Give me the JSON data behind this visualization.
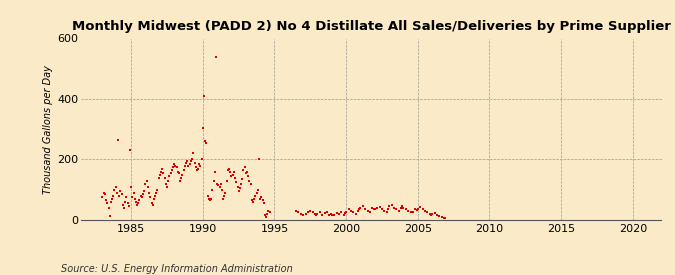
{
  "title": "Monthly Midwest (PADD 2) No 4 Distillate All Sales/Deliveries by Prime Supplier",
  "ylabel": "Thousand Gallons per Day",
  "source": "Source: U.S. Energy Information Administration",
  "background_color": "#faeac8",
  "marker_color": "#dd0000",
  "marker": "s",
  "marker_size": 4,
  "xlim": [
    1981.5,
    2022
  ],
  "ylim": [
    0,
    600
  ],
  "xticks": [
    1985,
    1990,
    1995,
    2000,
    2005,
    2010,
    2015,
    2020
  ],
  "yticks": [
    0,
    200,
    400,
    600
  ],
  "data": [
    [
      1983.0,
      75
    ],
    [
      1983.08,
      90
    ],
    [
      1983.17,
      85
    ],
    [
      1983.25,
      65
    ],
    [
      1983.33,
      55
    ],
    [
      1983.42,
      40
    ],
    [
      1983.5,
      13
    ],
    [
      1983.58,
      60
    ],
    [
      1983.67,
      70
    ],
    [
      1983.75,
      80
    ],
    [
      1983.83,
      100
    ],
    [
      1983.92,
      110
    ],
    [
      1984.0,
      90
    ],
    [
      1984.08,
      265
    ],
    [
      1984.17,
      80
    ],
    [
      1984.25,
      95
    ],
    [
      1984.33,
      85
    ],
    [
      1984.42,
      50
    ],
    [
      1984.5,
      40
    ],
    [
      1984.58,
      60
    ],
    [
      1984.67,
      75
    ],
    [
      1984.75,
      55
    ],
    [
      1984.83,
      45
    ],
    [
      1984.92,
      230
    ],
    [
      1985.0,
      110
    ],
    [
      1985.08,
      75
    ],
    [
      1985.17,
      90
    ],
    [
      1985.25,
      70
    ],
    [
      1985.33,
      60
    ],
    [
      1985.42,
      50
    ],
    [
      1985.5,
      55
    ],
    [
      1985.58,
      65
    ],
    [
      1985.67,
      80
    ],
    [
      1985.75,
      75
    ],
    [
      1985.83,
      85
    ],
    [
      1985.92,
      95
    ],
    [
      1986.0,
      120
    ],
    [
      1986.08,
      130
    ],
    [
      1986.17,
      110
    ],
    [
      1986.25,
      90
    ],
    [
      1986.33,
      75
    ],
    [
      1986.42,
      55
    ],
    [
      1986.5,
      50
    ],
    [
      1986.58,
      70
    ],
    [
      1986.67,
      80
    ],
    [
      1986.75,
      90
    ],
    [
      1986.83,
      100
    ],
    [
      1986.92,
      140
    ],
    [
      1987.0,
      150
    ],
    [
      1987.08,
      160
    ],
    [
      1987.17,
      170
    ],
    [
      1987.25,
      155
    ],
    [
      1987.33,
      140
    ],
    [
      1987.42,
      120
    ],
    [
      1987.5,
      110
    ],
    [
      1987.58,
      130
    ],
    [
      1987.67,
      145
    ],
    [
      1987.75,
      155
    ],
    [
      1987.83,
      165
    ],
    [
      1987.92,
      175
    ],
    [
      1988.0,
      185
    ],
    [
      1988.08,
      180
    ],
    [
      1988.17,
      175
    ],
    [
      1988.25,
      160
    ],
    [
      1988.33,
      155
    ],
    [
      1988.42,
      130
    ],
    [
      1988.5,
      140
    ],
    [
      1988.58,
      150
    ],
    [
      1988.67,
      165
    ],
    [
      1988.75,
      180
    ],
    [
      1988.83,
      190
    ],
    [
      1988.92,
      195
    ],
    [
      1989.0,
      180
    ],
    [
      1989.08,
      185
    ],
    [
      1989.17,
      195
    ],
    [
      1989.25,
      200
    ],
    [
      1989.33,
      220
    ],
    [
      1989.42,
      190
    ],
    [
      1989.5,
      175
    ],
    [
      1989.58,
      165
    ],
    [
      1989.67,
      170
    ],
    [
      1989.75,
      185
    ],
    [
      1989.83,
      180
    ],
    [
      1989.92,
      200
    ],
    [
      1990.0,
      305
    ],
    [
      1990.08,
      410
    ],
    [
      1990.17,
      260
    ],
    [
      1990.25,
      255
    ],
    [
      1990.33,
      80
    ],
    [
      1990.42,
      70
    ],
    [
      1990.5,
      65
    ],
    [
      1990.58,
      70
    ],
    [
      1990.67,
      100
    ],
    [
      1990.75,
      130
    ],
    [
      1990.83,
      160
    ],
    [
      1990.92,
      540
    ],
    [
      1991.0,
      120
    ],
    [
      1991.08,
      115
    ],
    [
      1991.17,
      110
    ],
    [
      1991.25,
      120
    ],
    [
      1991.33,
      100
    ],
    [
      1991.42,
      70
    ],
    [
      1991.5,
      80
    ],
    [
      1991.58,
      90
    ],
    [
      1991.67,
      130
    ],
    [
      1991.75,
      165
    ],
    [
      1991.83,
      170
    ],
    [
      1991.92,
      160
    ],
    [
      1992.0,
      145
    ],
    [
      1992.08,
      150
    ],
    [
      1992.17,
      160
    ],
    [
      1992.25,
      140
    ],
    [
      1992.33,
      125
    ],
    [
      1992.42,
      110
    ],
    [
      1992.5,
      95
    ],
    [
      1992.58,
      105
    ],
    [
      1992.67,
      120
    ],
    [
      1992.75,
      135
    ],
    [
      1992.83,
      165
    ],
    [
      1992.92,
      175
    ],
    [
      1993.0,
      155
    ],
    [
      1993.08,
      160
    ],
    [
      1993.17,
      145
    ],
    [
      1993.25,
      130
    ],
    [
      1993.33,
      120
    ],
    [
      1993.42,
      65
    ],
    [
      1993.5,
      60
    ],
    [
      1993.58,
      70
    ],
    [
      1993.67,
      80
    ],
    [
      1993.75,
      90
    ],
    [
      1993.83,
      100
    ],
    [
      1993.92,
      200
    ],
    [
      1994.0,
      70
    ],
    [
      1994.08,
      75
    ],
    [
      1994.17,
      65
    ],
    [
      1994.25,
      55
    ],
    [
      1994.33,
      15
    ],
    [
      1994.42,
      10
    ],
    [
      1994.5,
      20
    ],
    [
      1994.58,
      30
    ],
    [
      1994.67,
      25
    ],
    [
      1996.5,
      30
    ],
    [
      1996.67,
      25
    ],
    [
      1996.83,
      20
    ],
    [
      1997.0,
      15
    ],
    [
      1997.17,
      20
    ],
    [
      1997.33,
      25
    ],
    [
      1997.5,
      30
    ],
    [
      1997.67,
      25
    ],
    [
      1997.83,
      20
    ],
    [
      1997.92,
      15
    ],
    [
      1998.0,
      20
    ],
    [
      1998.17,
      25
    ],
    [
      1998.33,
      18
    ],
    [
      1998.5,
      22
    ],
    [
      1998.67,
      28
    ],
    [
      1998.83,
      15
    ],
    [
      1998.92,
      20
    ],
    [
      1999.0,
      15
    ],
    [
      1999.17,
      18
    ],
    [
      1999.33,
      22
    ],
    [
      1999.5,
      20
    ],
    [
      1999.67,
      25
    ],
    [
      1999.83,
      18
    ],
    [
      1999.92,
      22
    ],
    [
      2000.0,
      28
    ],
    [
      2000.17,
      35
    ],
    [
      2000.33,
      30
    ],
    [
      2000.5,
      25
    ],
    [
      2000.67,
      20
    ],
    [
      2000.83,
      30
    ],
    [
      2000.92,
      35
    ],
    [
      2001.0,
      40
    ],
    [
      2001.17,
      45
    ],
    [
      2001.33,
      35
    ],
    [
      2001.5,
      30
    ],
    [
      2001.67,
      25
    ],
    [
      2001.83,
      40
    ],
    [
      2001.92,
      38
    ],
    [
      2002.0,
      35
    ],
    [
      2002.17,
      40
    ],
    [
      2002.33,
      42
    ],
    [
      2002.5,
      38
    ],
    [
      2002.67,
      30
    ],
    [
      2002.83,
      25
    ],
    [
      2002.92,
      35
    ],
    [
      2003.0,
      45
    ],
    [
      2003.17,
      50
    ],
    [
      2003.33,
      40
    ],
    [
      2003.5,
      35
    ],
    [
      2003.67,
      30
    ],
    [
      2003.83,
      40
    ],
    [
      2003.92,
      45
    ],
    [
      2004.0,
      40
    ],
    [
      2004.17,
      35
    ],
    [
      2004.33,
      30
    ],
    [
      2004.5,
      25
    ],
    [
      2004.67,
      28
    ],
    [
      2004.83,
      35
    ],
    [
      2004.92,
      32
    ],
    [
      2005.0,
      38
    ],
    [
      2005.17,
      42
    ],
    [
      2005.33,
      35
    ],
    [
      2005.5,
      30
    ],
    [
      2005.67,
      25
    ],
    [
      2005.83,
      20
    ],
    [
      2005.92,
      18
    ],
    [
      2006.0,
      20
    ],
    [
      2006.17,
      22
    ],
    [
      2006.33,
      15
    ],
    [
      2006.5,
      12
    ],
    [
      2006.67,
      10
    ],
    [
      2006.83,
      8
    ],
    [
      2006.92,
      5
    ]
  ]
}
